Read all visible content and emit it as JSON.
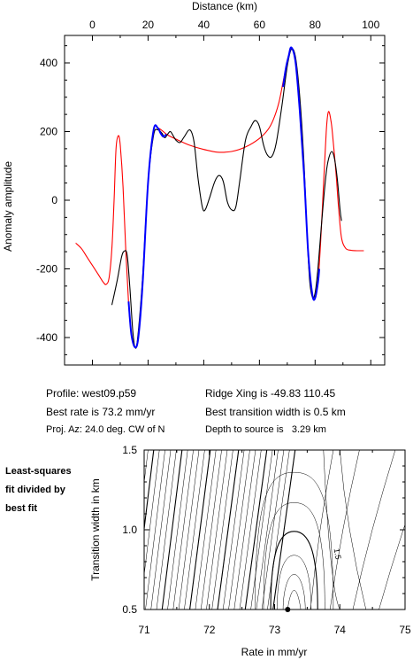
{
  "info": {
    "profile": "Profile: west09.p59",
    "best_rate": "Best rate is 73.2 mm/yr",
    "proj_az": "Proj. Az: 24.0 deg. CW of N",
    "ridge_xing": "Ridge Xing is -49.83 110.45",
    "transition": "Best transition width is 0.5 km",
    "depth": "Depth to source is   3.29 km"
  },
  "side_note": [
    "Least-squares",
    "fit divided by",
    "best fit"
  ],
  "chart_data": [
    {
      "type": "line",
      "title": "",
      "xlabel": "Distance (km)",
      "ylabel": "Anomaly amplitude",
      "xlim": [
        -10,
        105
      ],
      "ylim": [
        -480,
        480
      ],
      "xticks": [
        0,
        20,
        40,
        60,
        80,
        100
      ],
      "yticks": [
        -400,
        -200,
        0,
        200,
        400
      ],
      "x_axis_position": "top",
      "colors": {
        "observed": "#000000",
        "model": "#ff0000",
        "fit_window": "#0000ff"
      },
      "series": [
        {
          "key": "observed",
          "color": "#000000",
          "points": [
            [
              7,
              -305
            ],
            [
              9,
              -230
            ],
            [
              10.5,
              -165
            ],
            [
              11.5,
              -148
            ],
            [
              12.5,
              -160
            ],
            [
              13.5,
              -260
            ],
            [
              14.5,
              -380
            ],
            [
              15.3,
              -428
            ],
            [
              16.2,
              -405
            ],
            [
              18,
              -230
            ],
            [
              20,
              50
            ],
            [
              22,
              190
            ],
            [
              23.5,
              205
            ],
            [
              25,
              195
            ],
            [
              26,
              182
            ],
            [
              27,
              192
            ],
            [
              28,
              200
            ],
            [
              29,
              188
            ],
            [
              30,
              175
            ],
            [
              31.5,
              168
            ],
            [
              33,
              185
            ],
            [
              35,
              205
            ],
            [
              36.5,
              170
            ],
            [
              38,
              60
            ],
            [
              39.5,
              -20
            ],
            [
              40.5,
              -28
            ],
            [
              42,
              5
            ],
            [
              44,
              55
            ],
            [
              45.5,
              72
            ],
            [
              47,
              55
            ],
            [
              48.5,
              -5
            ],
            [
              50,
              -28
            ],
            [
              51.5,
              -20
            ],
            [
              53,
              60
            ],
            [
              55,
              175
            ],
            [
              57,
              215
            ],
            [
              58.5,
              232
            ],
            [
              60,
              215
            ],
            [
              61.5,
              160
            ],
            [
              63,
              130
            ],
            [
              64.5,
              128
            ],
            [
              66,
              165
            ],
            [
              68,
              270
            ],
            [
              70,
              390
            ],
            [
              71.5,
              440
            ],
            [
              73,
              415
            ],
            [
              74.5,
              300
            ],
            [
              76,
              110
            ],
            [
              77,
              -80
            ],
            [
              78,
              -230
            ],
            [
              79,
              -282
            ],
            [
              80,
              -270
            ],
            [
              81,
              -200
            ],
            [
              82.5,
              -50
            ],
            [
              84,
              80
            ],
            [
              85,
              125
            ],
            [
              86,
              142
            ],
            [
              87,
              120
            ],
            [
              88,
              60
            ],
            [
              89,
              -30
            ],
            [
              89.5,
              -60
            ]
          ]
        },
        {
          "key": "model",
          "color": "#ff0000",
          "points": [
            [
              -6,
              -125
            ],
            [
              -4,
              -140
            ],
            [
              -2,
              -165
            ],
            [
              0,
              -190
            ],
            [
              2,
              -215
            ],
            [
              4,
              -240
            ],
            [
              5,
              -245
            ],
            [
              6,
              -225
            ],
            [
              7,
              -140
            ],
            [
              7.8,
              0
            ],
            [
              8.5,
              150
            ],
            [
              9.3,
              188
            ],
            [
              10,
              160
            ],
            [
              11,
              40
            ],
            [
              12,
              -150
            ],
            [
              13,
              -300
            ],
            [
              14,
              -390
            ],
            [
              15.3,
              -428
            ],
            [
              16.5,
              -400
            ],
            [
              18,
              -250
            ],
            [
              20,
              50
            ],
            [
              22,
              205
            ],
            [
              23.5,
              210
            ],
            [
              25,
              203
            ],
            [
              27,
              190
            ],
            [
              30,
              178
            ],
            [
              35,
              160
            ],
            [
              40,
              148
            ],
            [
              45,
              140
            ],
            [
              50,
              142
            ],
            [
              55,
              155
            ],
            [
              60,
              180
            ],
            [
              63,
              205
            ],
            [
              65,
              235
            ],
            [
              67,
              285
            ],
            [
              69,
              365
            ],
            [
              70.5,
              420
            ],
            [
              71.5,
              445
            ],
            [
              73,
              400
            ],
            [
              74.5,
              260
            ],
            [
              76,
              80
            ],
            [
              77.5,
              -150
            ],
            [
              79,
              -275
            ],
            [
              80,
              -285
            ],
            [
              81,
              -240
            ],
            [
              82,
              -120
            ],
            [
              83,
              40
            ],
            [
              84,
              200
            ],
            [
              84.8,
              258
            ],
            [
              85.8,
              225
            ],
            [
              86.5,
              170
            ],
            [
              87.5,
              80
            ],
            [
              88.5,
              -30
            ],
            [
              89.5,
              -110
            ],
            [
              91,
              -140
            ],
            [
              93,
              -146
            ],
            [
              95,
              -147
            ],
            [
              97.5,
              -147
            ]
          ]
        },
        {
          "key": "fit_window",
          "color": "#0000ff",
          "points": [
            [
              13,
              -295
            ],
            [
              14,
              -390
            ],
            [
              15.3,
              -428
            ],
            [
              16.5,
              -400
            ],
            [
              18,
              -250
            ],
            [
              20,
              50
            ],
            [
              22,
              205
            ],
            [
              23.5,
              210
            ],
            [
              24.5,
              195
            ],
            [
              25.5,
              185
            ],
            [
              26.5,
              192
            ]
          ]
        },
        {
          "key": "fit_window",
          "color": "#0000ff",
          "points": [
            [
              68.5,
              330
            ],
            [
              69.5,
              385
            ],
            [
              70.5,
              420
            ],
            [
              71.5,
              445
            ],
            [
              73,
              400
            ],
            [
              74.5,
              260
            ],
            [
              76,
              80
            ],
            [
              77.5,
              -150
            ],
            [
              79,
              -275
            ],
            [
              80,
              -285
            ],
            [
              81,
              -240
            ],
            [
              81.5,
              -200
            ]
          ]
        }
      ]
    },
    {
      "type": "contour",
      "xlabel": "Rate in mm/yr",
      "ylabel": "Transition width in km",
      "xlim": [
        71,
        75
      ],
      "ylim": [
        0.5,
        1.5
      ],
      "xticks": [
        71,
        72,
        73,
        74,
        75
      ],
      "yticks": [
        0.5,
        1.0,
        1.5
      ],
      "best_fit": {
        "rate": 73.2,
        "width": 0.5
      },
      "contour_label": "1.5",
      "contour_label_position": {
        "rate": 73.95,
        "width": 0.88
      }
    }
  ]
}
